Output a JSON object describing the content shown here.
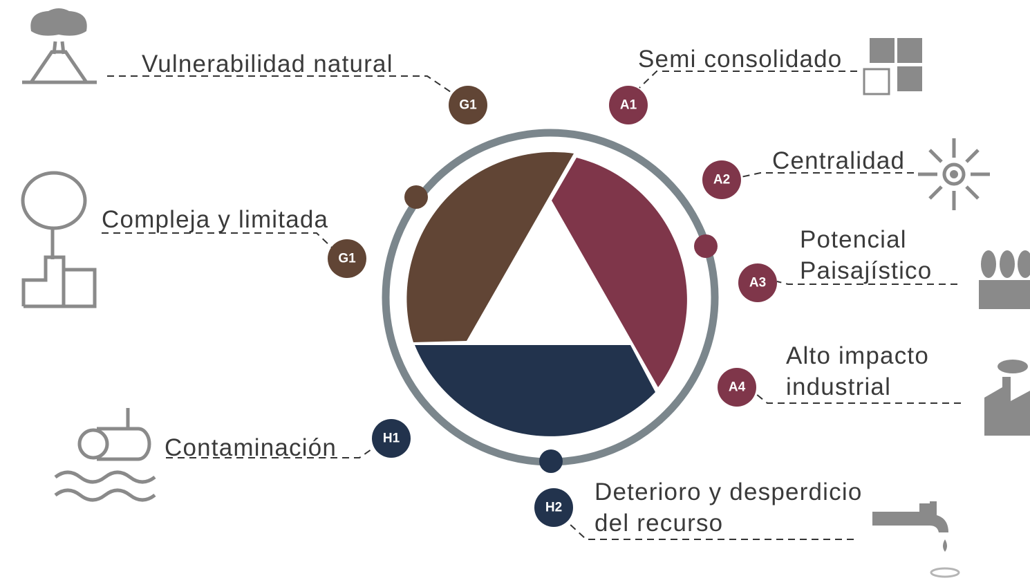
{
  "items": [
    {
      "badge": "G1",
      "lines": [
        "Vulnerabilidad natural"
      ]
    },
    {
      "badge": "A1",
      "lines": [
        "Semi consolidado"
      ]
    },
    {
      "badge": "A2",
      "lines": [
        "Centralidad"
      ]
    },
    {
      "badge": "A3",
      "lines": [
        "Potencial",
        "Paisajístico"
      ]
    },
    {
      "badge": "A4",
      "lines": [
        "Alto impacto",
        "industrial"
      ]
    },
    {
      "badge": "G1",
      "lines": [
        "Compleja y limitada"
      ]
    },
    {
      "badge": "H1",
      "lines": [
        "Contaminación"
      ]
    },
    {
      "badge": "H2",
      "lines": [
        "Deterioro y desperdicio",
        "del recurso"
      ]
    }
  ]
}
